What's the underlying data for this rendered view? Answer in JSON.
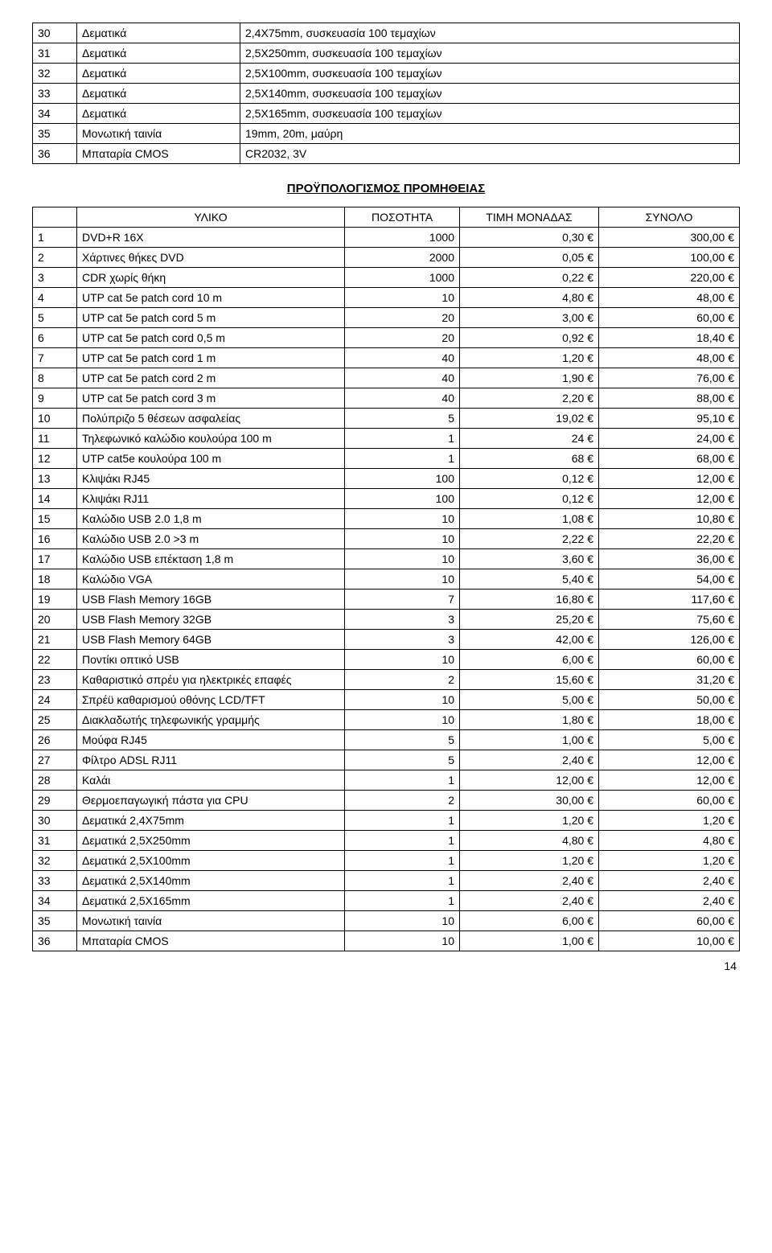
{
  "table1": {
    "rows": [
      [
        "30",
        "Δεματικά",
        "2,4Χ75mm, συσκευασία 100 τεμαχίων"
      ],
      [
        "31",
        "Δεματικά",
        "2,5Χ250mm, συσκευασία 100 τεμαχίων"
      ],
      [
        "32",
        "Δεματικά",
        "2,5Χ100mm, συσκευασία 100 τεμαχίων"
      ],
      [
        "33",
        "Δεματικά",
        "2,5Χ140mm, συσκευασία 100 τεμαχίων"
      ],
      [
        "34",
        "Δεματικά",
        "2,5Χ165mm, συσκευασία 100 τεμαχίων"
      ],
      [
        "35",
        "Μονωτική ταινία",
        "19mm, 20m, μαύρη"
      ],
      [
        "36",
        "Μπαταρία CMOS",
        "CR2032, 3V"
      ]
    ]
  },
  "heading": "ΠΡΟΫΠΟΛΟΓΙΣΜΟΣ ΠΡΟΜΗΘΕΙΑΣ",
  "table2": {
    "headers": [
      "",
      "ΥΛΙΚΟ",
      "ΠΟΣΟΤΗΤΑ",
      "ΤΙΜΗ ΜΟΝΑΔΑΣ",
      "ΣΥΝΟΛΟ"
    ],
    "rows": [
      [
        "1",
        "DVD+R 16X",
        "1000",
        "0,30 €",
        "300,00 €"
      ],
      [
        "2",
        "Χάρτινες θήκες DVD",
        "2000",
        "0,05 €",
        "100,00 €"
      ],
      [
        "3",
        "CDR χωρίς θήκη",
        "1000",
        "0,22 €",
        "220,00 €"
      ],
      [
        "4",
        "UTP cat 5e patch cord 10 m",
        "10",
        "4,80 €",
        "48,00 €"
      ],
      [
        "5",
        "UTP cat 5e patch cord 5 m",
        "20",
        "3,00 €",
        "60,00 €"
      ],
      [
        "6",
        "UTP cat 5e patch cord 0,5 m",
        "20",
        "0,92 €",
        "18,40 €"
      ],
      [
        "7",
        "UTP cat 5e patch cord 1 m",
        "40",
        "1,20 €",
        "48,00 €"
      ],
      [
        "8",
        "UTP cat 5e patch cord 2 m",
        "40",
        "1,90 €",
        "76,00 €"
      ],
      [
        "9",
        "UTP cat 5e patch cord 3 m",
        "40",
        "2,20 €",
        "88,00 €"
      ],
      [
        "10",
        "Πολύπριζο 5 θέσεων ασφαλείας",
        "5",
        "19,02 €",
        "95,10 €"
      ],
      [
        "11",
        "Τηλεφωνικό καλώδιο κουλούρα 100 m",
        "1",
        "24 €",
        "24,00 €"
      ],
      [
        "12",
        "UTP cat5e κουλούρα 100 m",
        "1",
        "68 €",
        "68,00 €"
      ],
      [
        "13",
        "Κλιψάκι RJ45",
        "100",
        "0,12 €",
        "12,00 €"
      ],
      [
        "14",
        "Κλιψάκι RJ11",
        "100",
        "0,12 €",
        "12,00 €"
      ],
      [
        "15",
        "Καλώδιο USB 2.0 1,8 m",
        "10",
        "1,08 €",
        "10,80 €"
      ],
      [
        "16",
        "Καλώδιο USB 2.0 >3 m",
        "10",
        "2,22 €",
        "22,20 €"
      ],
      [
        "17",
        "Καλώδιο USB επέκταση 1,8 m",
        "10",
        "3,60 €",
        "36,00 €"
      ],
      [
        "18",
        "Καλώδιο VGA",
        "10",
        "5,40 €",
        "54,00 €"
      ],
      [
        "19",
        "USB Flash Memory 16GB",
        "7",
        "16,80 €",
        "117,60 €"
      ],
      [
        "20",
        "USB Flash Memory 32GB",
        "3",
        "25,20 €",
        "75,60 €"
      ],
      [
        "21",
        "USB Flash Memory 64GB",
        "3",
        "42,00 €",
        "126,00 €"
      ],
      [
        "22",
        "Ποντίκι οπτικό USB",
        "10",
        "6,00 €",
        "60,00 €"
      ],
      [
        "23",
        "Καθαριστικό σπρέυ για ηλεκτρικές επαφές",
        "2",
        "15,60 €",
        "31,20 €"
      ],
      [
        "24",
        "Σπρέϋ καθαρισμού οθόνης LCD/TFT",
        "10",
        "5,00 €",
        "50,00 €"
      ],
      [
        "25",
        "Διακλαδωτής τηλεφωνικής γραμμής",
        "10",
        "1,80 €",
        "18,00 €"
      ],
      [
        "26",
        "Μούφα RJ45",
        "5",
        "1,00 €",
        "5,00 €"
      ],
      [
        "27",
        "Φίλτρο ADSL RJ11",
        "5",
        "2,40 €",
        "12,00 €"
      ],
      [
        "28",
        "Καλάι",
        "1",
        "12,00 €",
        "12,00 €"
      ],
      [
        "29",
        "Θερμοεπαγωγική πάστα για CPU",
        "2",
        "30,00 €",
        "60,00 €"
      ],
      [
        "30",
        "Δεματικά 2,4Χ75mm",
        "1",
        "1,20 €",
        "1,20 €"
      ],
      [
        "31",
        "Δεματικά 2,5Χ250mm",
        "1",
        "4,80 €",
        "4,80 €"
      ],
      [
        "32",
        "Δεματικά 2,5Χ100mm",
        "1",
        "1,20 €",
        "1,20 €"
      ],
      [
        "33",
        "Δεματικά 2,5Χ140mm",
        "1",
        "2,40 €",
        "2,40 €"
      ],
      [
        "34",
        "Δεματικά 2,5Χ165mm",
        "1",
        "2,40 €",
        "2,40 €"
      ],
      [
        "35",
        "Μονωτική ταινία",
        "10",
        "6,00 €",
        "60,00 €"
      ],
      [
        "36",
        "Μπαταρία CMOS",
        "10",
        "1,00 €",
        "10,00 €"
      ]
    ]
  },
  "page_number": "14"
}
